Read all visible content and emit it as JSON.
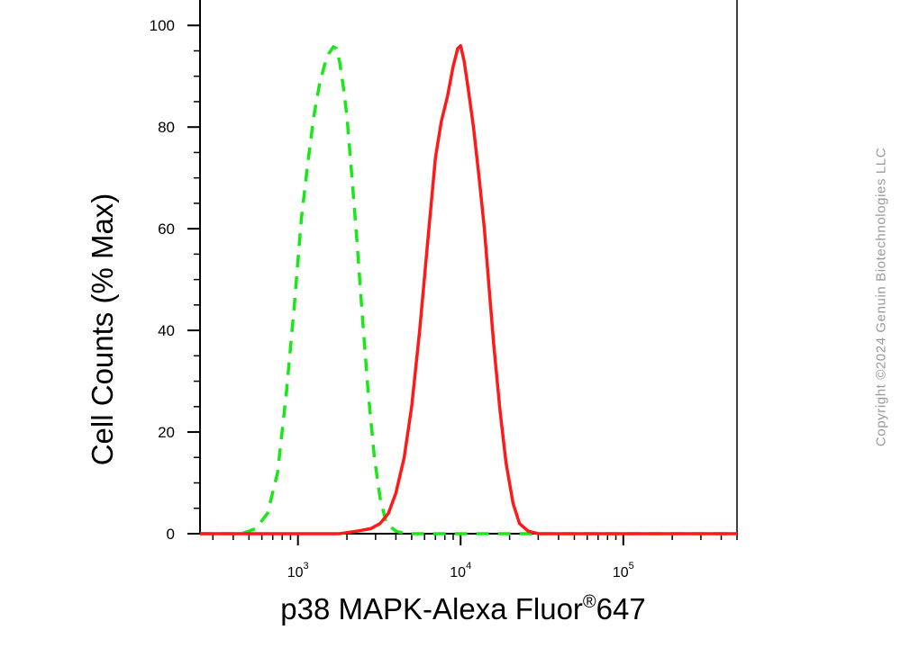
{
  "chart_data": {
    "type": "line",
    "title": "",
    "xlabel": "p38 MAPK-Alexa Fluor",
    "xlabel_superscript": "®",
    "xlabel_suffix": "647",
    "ylabel": "Cell Counts (% Max)",
    "x_scale": "log",
    "xlim": [
      250,
      500000
    ],
    "ylim": [
      0,
      105
    ],
    "grid": false,
    "legend": "none",
    "x_tick_labels": [
      {
        "base": "10",
        "exp": "3",
        "value": 1000
      },
      {
        "base": "10",
        "exp": "4",
        "value": 10000
      },
      {
        "base": "10",
        "exp": "5",
        "value": 100000
      }
    ],
    "y_ticks": [
      0,
      20,
      40,
      60,
      80,
      100
    ],
    "series": [
      {
        "color": "#18e818",
        "style": "dashed",
        "x": [
          250,
          450,
          550,
          650,
          750,
          850,
          950,
          1050,
          1150,
          1250,
          1350,
          1450,
          1550,
          1650,
          1720,
          1800,
          1900,
          2000,
          2150,
          2300,
          2500,
          2700,
          2950,
          3200,
          3500,
          4000,
          4600,
          6000,
          10000,
          30000,
          100000,
          500000
        ],
        "y": [
          0,
          0,
          1,
          4,
          12,
          28,
          45,
          62,
          73,
          82,
          88,
          92,
          94.5,
          95.8,
          95.5,
          93,
          88,
          82,
          70,
          58,
          42,
          28,
          15,
          7,
          2,
          0.5,
          0,
          0,
          0,
          0,
          0,
          0
        ]
      },
      {
        "color": "#ff1a1a",
        "style": "solid",
        "x": [
          250,
          1000,
          1800,
          2300,
          2800,
          3200,
          3600,
          4000,
          4500,
          5000,
          5600,
          6300,
          7000,
          7600,
          8300,
          9000,
          9600,
          10000,
          10500,
          11200,
          12000,
          13000,
          14000,
          15000,
          16000,
          17500,
          19000,
          21000,
          23000,
          26000,
          30000,
          50000,
          100000,
          500000
        ],
        "y": [
          0,
          0,
          0,
          0.5,
          1,
          2,
          4,
          8,
          15,
          25,
          40,
          58,
          74,
          81,
          86,
          92,
          95.5,
          96,
          93,
          87,
          80,
          70,
          60,
          48,
          37,
          24,
          14,
          6,
          2,
          0.5,
          0,
          0,
          0,
          0
        ]
      }
    ]
  },
  "watermark": "Copyright ©2024 Genuin Biotechnologies LLC"
}
